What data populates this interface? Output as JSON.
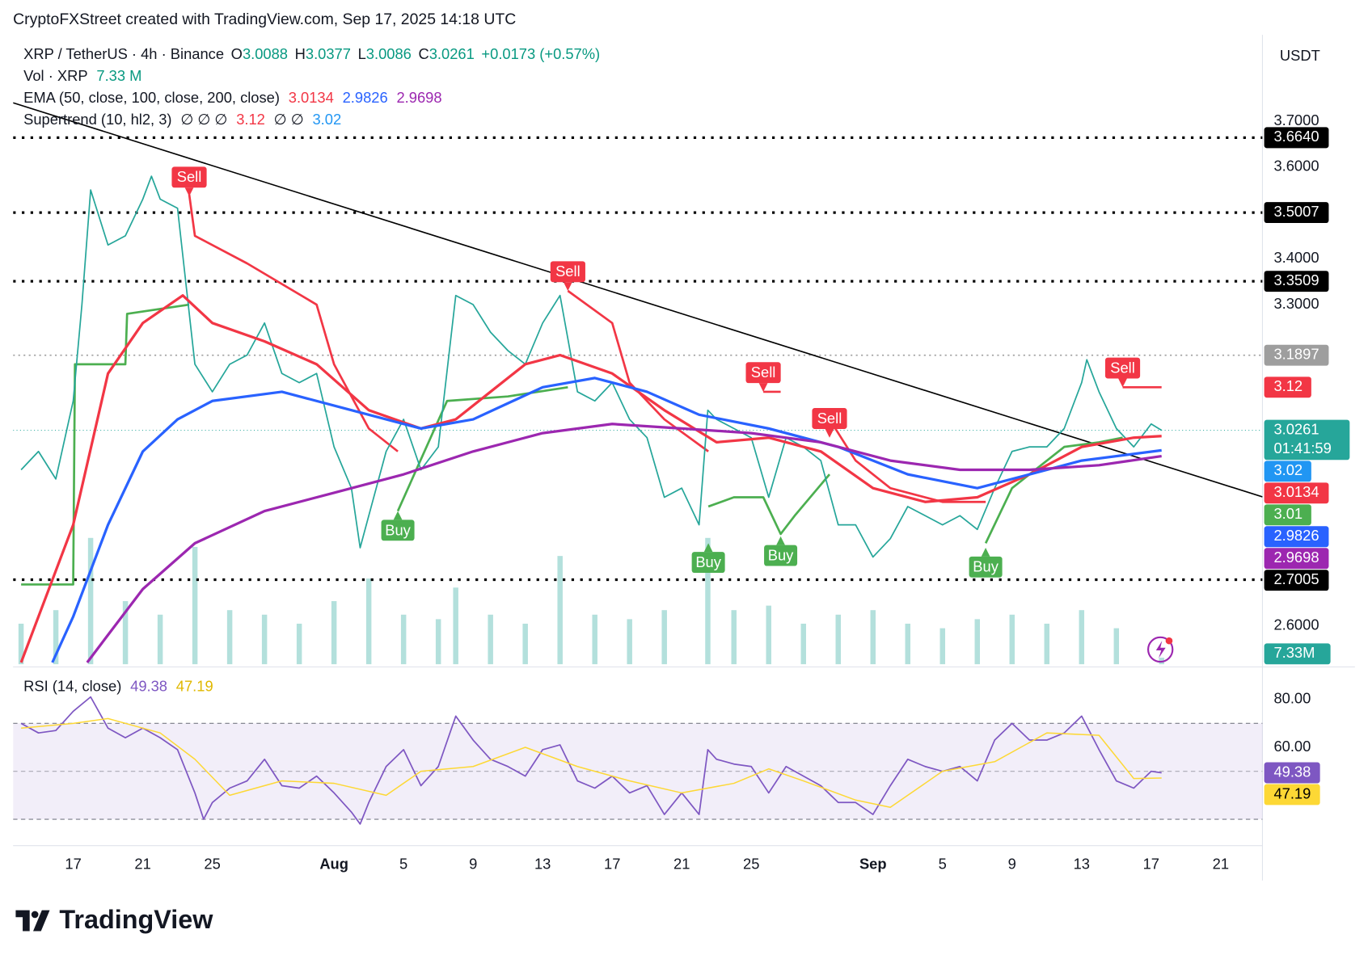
{
  "header": {
    "caption": "CryptoFXStreet created with TradingView.com, Sep 17, 2025 14:18 UTC",
    "logo": "TradingView"
  },
  "legend": {
    "symbol": "XRP / TetherUS · 4h · Binance",
    "open_label": "O",
    "open": "3.0088",
    "high_label": "H",
    "high": "3.0377",
    "low_label": "L",
    "low": "3.0086",
    "close_label": "C",
    "close": "3.0261",
    "change": "+0.0173 (+0.57%)",
    "volume_label": "Vol · XRP",
    "volume": "7.33 M",
    "ema_label": "EMA (50, close, 100, close, 200, close)",
    "ema50": "3.0134",
    "ema100": "2.9826",
    "ema200": "2.9698",
    "supertrend_label": "Supertrend (10, hl2, 3)",
    "supertrend_empty_1": "∅ ∅ ∅",
    "supertrend_down": "3.12",
    "supertrend_empty_2": "∅ ∅",
    "supertrend_up": "3.02",
    "rsi_label": "RSI (14, close)",
    "rsi": "49.38",
    "rsi_ma": "47.19"
  },
  "chart_data": {
    "type": "line",
    "xlim": [
      -3.46,
      68.4
    ],
    "xticks": [
      {
        "value": 0,
        "label": "17"
      },
      {
        "value": 4,
        "label": "21"
      },
      {
        "value": 8,
        "label": "25"
      },
      {
        "value": 15,
        "label": "Aug"
      },
      {
        "value": 19,
        "label": "5"
      },
      {
        "value": 23,
        "label": "9"
      },
      {
        "value": 27,
        "label": "13"
      },
      {
        "value": 31,
        "label": "17"
      },
      {
        "value": 35,
        "label": "21"
      },
      {
        "value": 39,
        "label": "25"
      },
      {
        "value": 46,
        "label": "Sep"
      },
      {
        "value": 50,
        "label": "5"
      },
      {
        "value": 54,
        "label": "9"
      },
      {
        "value": 58,
        "label": "13"
      },
      {
        "value": 62,
        "label": "17"
      },
      {
        "value": 66,
        "label": "21"
      }
    ],
    "price": {
      "currency": "USDT",
      "ylim": [
        2.516,
        3.888
      ],
      "yticks": [
        {
          "value": 3.7,
          "label": "3.7000"
        },
        {
          "value": 3.6,
          "label": "3.6000"
        },
        {
          "value": 3.4,
          "label": "3.4000"
        },
        {
          "value": 3.3,
          "label": "3.3000"
        },
        {
          "value": 2.6,
          "label": "2.6000"
        }
      ],
      "series": [
        {
          "color": "#26a69a",
          "width": 1.6,
          "x": [
            -3,
            -2,
            -1,
            0,
            0.5,
            1,
            2,
            3,
            4,
            4.5,
            5,
            6,
            7,
            8,
            9,
            10,
            11,
            12,
            13,
            14,
            15,
            16,
            16.5,
            17,
            18,
            19,
            20,
            21,
            22,
            23,
            24,
            25,
            26,
            27,
            28,
            29,
            30,
            31,
            32,
            33,
            34,
            35,
            36,
            36.5,
            37,
            38,
            39,
            40,
            41,
            42,
            43,
            44,
            45,
            46,
            47,
            48,
            49,
            50,
            51,
            52,
            53,
            54,
            55,
            56,
            57,
            58,
            58.3,
            59,
            60,
            61,
            62,
            62.6
          ],
          "values": [
            2.94,
            2.98,
            2.92,
            3.09,
            3.3,
            3.55,
            3.43,
            3.45,
            3.53,
            3.58,
            3.53,
            3.51,
            3.17,
            3.11,
            3.17,
            3.19,
            3.26,
            3.15,
            3.13,
            3.15,
            2.99,
            2.9,
            2.77,
            2.84,
            2.98,
            3.05,
            2.94,
            2.99,
            3.32,
            3.3,
            3.24,
            3.2,
            3.17,
            3.26,
            3.32,
            3.11,
            3.09,
            3.13,
            3.05,
            3.01,
            2.88,
            2.9,
            2.82,
            3.07,
            3.05,
            3.03,
            3.01,
            2.88,
            3.01,
            2.99,
            2.96,
            2.82,
            2.82,
            2.75,
            2.79,
            2.86,
            2.84,
            2.82,
            2.84,
            2.81,
            2.9,
            2.98,
            2.99,
            2.99,
            3.03,
            3.13,
            3.18,
            3.11,
            3.03,
            2.99,
            3.04,
            3.0261
          ]
        },
        {
          "color": "#f23645",
          "width": 3,
          "x": [
            -3,
            0,
            2,
            4,
            6.3,
            8,
            11,
            14,
            17,
            20,
            22,
            24,
            26,
            28,
            31,
            34,
            37,
            40,
            43,
            46,
            49,
            52,
            55,
            58,
            61,
            62.6
          ],
          "values": [
            2.52,
            2.82,
            3.15,
            3.26,
            3.32,
            3.26,
            3.22,
            3.17,
            3.07,
            3.03,
            3.05,
            3.11,
            3.17,
            3.19,
            3.15,
            3.07,
            3.0,
            3.01,
            2.98,
            2.9,
            2.87,
            2.88,
            2.93,
            2.99,
            3.01,
            3.0134
          ]
        },
        {
          "color": "#2962ff",
          "width": 3,
          "x": [
            -1.2,
            0,
            2,
            4,
            6,
            8,
            12,
            16,
            20,
            23,
            27,
            30,
            33,
            36,
            40,
            44,
            48,
            52,
            55,
            58,
            62.6
          ],
          "values": [
            2.52,
            2.62,
            2.82,
            2.98,
            3.05,
            3.09,
            3.11,
            3.07,
            3.03,
            3.05,
            3.12,
            3.14,
            3.11,
            3.06,
            3.03,
            2.99,
            2.93,
            2.9,
            2.93,
            2.96,
            2.9826
          ]
        },
        {
          "color": "#9c27b0",
          "width": 3,
          "x": [
            0.8,
            2,
            4,
            7,
            11,
            15,
            19,
            23,
            27,
            31,
            35,
            39,
            43,
            47,
            51,
            55,
            59,
            62.6
          ],
          "values": [
            2.52,
            2.58,
            2.68,
            2.78,
            2.85,
            2.89,
            2.93,
            2.98,
            3.02,
            3.04,
            3.03,
            3.02,
            3.0,
            2.96,
            2.94,
            2.94,
            2.95,
            2.9698
          ]
        }
      ],
      "supertrend": {
        "up_color": "#4caf50",
        "down_color": "#f23645",
        "x": [
          -3,
          0,
          0.1,
          3,
          3.1,
          6.67,
          7,
          10,
          14,
          15,
          17,
          18.67,
          21.5,
          25,
          28.45,
          31,
          32,
          34,
          36.53,
          38,
          39.69,
          40.69,
          41.5,
          43.5,
          45,
          47,
          50,
          52.48,
          54,
          57,
          59,
          60.36,
          62.6
        ],
        "up": [
          2.69,
          2.69,
          3.17,
          3.17,
          3.28,
          3.3,
          null,
          null,
          null,
          null,
          null,
          2.85,
          3.09,
          3.1,
          3.12,
          null,
          null,
          null,
          2.86,
          2.88,
          2.88,
          2.8,
          2.84,
          2.93,
          null,
          null,
          null,
          2.78,
          2.9,
          2.99,
          3.0,
          3.01,
          null
        ],
        "down": [
          null,
          null,
          null,
          null,
          null,
          3.54,
          3.45,
          3.39,
          3.3,
          3.17,
          3.03,
          2.98,
          null,
          null,
          3.33,
          3.26,
          3.13,
          3.05,
          2.98,
          null,
          3.11,
          3.11,
          null,
          3.05,
          2.96,
          2.9,
          2.87,
          2.87,
          null,
          null,
          null,
          3.12,
          3.12
        ]
      },
      "signals": [
        {
          "label": "Sell",
          "x": 6.67,
          "value": 3.536
        },
        {
          "label": "Sell",
          "x": 28.45,
          "value": 3.33
        },
        {
          "label": "Sell",
          "x": 39.69,
          "value": 3.11
        },
        {
          "label": "Sell",
          "x": 43.5,
          "value": 3.01
        },
        {
          "label": "Sell",
          "x": 60.36,
          "value": 3.12
        },
        {
          "label": "Buy",
          "x": 18.67,
          "value": 2.85
        },
        {
          "label": "Buy",
          "x": 36.53,
          "value": 2.78
        },
        {
          "label": "Buy",
          "x": 40.69,
          "value": 2.795
        },
        {
          "label": "Buy",
          "x": 52.48,
          "value": 2.77
        }
      ],
      "trendline": {
        "x": [
          -3.46,
          68.4
        ],
        "values": [
          3.74,
          2.881
        ]
      },
      "tags": [
        {
          "value": 3.664,
          "label": "3.6640",
          "color": "#000000",
          "line": "bold-dotted"
        },
        {
          "value": 3.5007,
          "color": "#000000",
          "line": "bold-dotted"
        },
        {
          "value": 3.3509,
          "color": "#000000",
          "line": "bold-dotted"
        },
        {
          "value": 3.1897,
          "color": "#9e9e9e",
          "line": "dotted"
        },
        {
          "value": 3.12,
          "color": "#f23645"
        },
        {
          "value": 3.0261,
          "color": "#26a69a",
          "line": "fine-dotted",
          "countdown": "01:41:59"
        },
        {
          "value": 3.02,
          "color": "#2196f3"
        },
        {
          "value": 3.0134,
          "color": "#f23645"
        },
        {
          "value": 3.01,
          "color": "#4caf50"
        },
        {
          "value": 2.9826,
          "color": "#2962ff"
        },
        {
          "value": 2.9698,
          "color": "#9c27b0"
        },
        {
          "value": 2.7005,
          "color": "#000000",
          "line": "bold-dotted"
        }
      ]
    },
    "volume": {
      "color": "#26a69a",
      "tag": "7.33M",
      "x": [
        -3,
        -1,
        1,
        3,
        5,
        7,
        9,
        11,
        13,
        15,
        17,
        19,
        21,
        22,
        24,
        26,
        28,
        30,
        32,
        34,
        36.5,
        38,
        40,
        42,
        44,
        46,
        48,
        50,
        52,
        54,
        56,
        58,
        60,
        62.6
      ],
      "values": [
        45,
        60,
        140,
        70,
        55,
        130,
        60,
        55,
        45,
        70,
        95,
        55,
        50,
        85,
        55,
        45,
        120,
        55,
        50,
        60,
        140,
        60,
        65,
        45,
        55,
        60,
        45,
        40,
        50,
        55,
        45,
        60,
        40,
        7.33
      ]
    },
    "rsi": {
      "ylim": [
        19,
        93.5
      ],
      "yticks": [
        {
          "value": 80,
          "label": "80.00"
        },
        {
          "value": 60,
          "label": "60.00"
        }
      ],
      "bands": [
        30,
        70
      ],
      "midline": 50,
      "series": [
        {
          "color": "#7e57c2",
          "width": 1.6,
          "x": [
            -3,
            -2,
            -1,
            0,
            1,
            2,
            3,
            4,
            5,
            6,
            7,
            7.5,
            8,
            9,
            10,
            11,
            12,
            13,
            14,
            15,
            16,
            16.5,
            17,
            18,
            19,
            20,
            21,
            22,
            23,
            24,
            25,
            26,
            27,
            28,
            29,
            30,
            31,
            32,
            33,
            34,
            35,
            36,
            36.5,
            37,
            38,
            39,
            40,
            41,
            42,
            43,
            44,
            45,
            46,
            47,
            48,
            49,
            50,
            51,
            52,
            53,
            54,
            55,
            56,
            57,
            58,
            59,
            60,
            61,
            62,
            62.6
          ],
          "values": [
            70,
            66,
            67,
            75,
            81,
            68,
            64,
            68,
            64,
            59,
            41,
            30,
            37,
            43,
            46,
            55,
            44,
            43,
            48,
            41,
            33,
            28,
            37,
            52,
            59,
            44,
            52,
            73,
            63,
            55,
            52,
            48,
            59,
            61,
            46,
            43,
            48,
            41,
            44,
            32,
            41,
            32,
            59,
            55,
            53,
            52,
            41,
            52,
            48,
            44,
            37,
            37,
            32,
            44,
            55,
            52,
            50,
            52,
            46,
            63,
            70,
            63,
            63,
            66,
            73,
            59,
            46,
            43,
            50,
            49.38
          ]
        },
        {
          "color": "#fdd835",
          "width": 1.4,
          "x": [
            -3,
            0,
            2,
            5,
            7,
            9,
            12,
            15,
            18,
            20,
            23,
            26,
            29,
            32,
            35,
            38,
            40,
            42,
            45,
            47,
            50,
            53,
            56,
            59,
            61,
            62.6
          ],
          "values": [
            68,
            70,
            72,
            66,
            55,
            40,
            46,
            45,
            40,
            50,
            52,
            60,
            52,
            46,
            41,
            45,
            51,
            46,
            38,
            35,
            50,
            54,
            66,
            65,
            47,
            47.19
          ]
        }
      ],
      "tags": [
        {
          "value": 49.38,
          "color": "#7e57c2",
          "text_color": "#ffffff"
        },
        {
          "value": 47.19,
          "color": "#fdd835",
          "text_color": "#000000"
        }
      ]
    }
  }
}
